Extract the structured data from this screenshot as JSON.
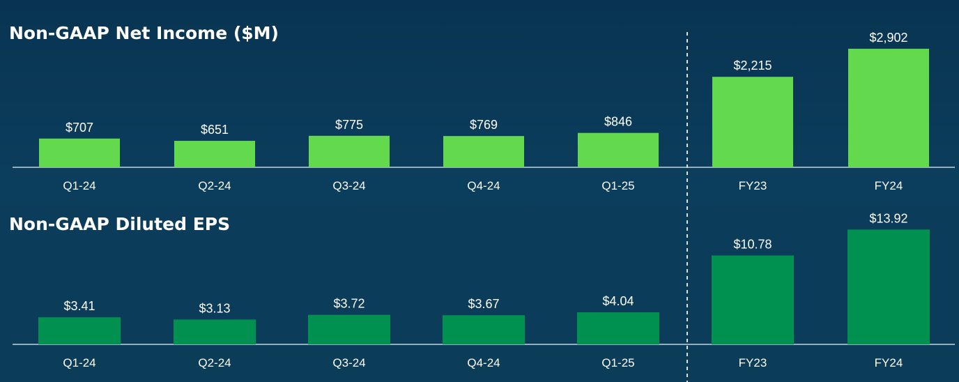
{
  "colors": {
    "background": "#0a3a57",
    "net_income_bar": "#63d94e",
    "eps_bar": "#009150",
    "axis": "#c8d3da",
    "divider": "#d9e2e8",
    "text": "#ffffff"
  },
  "chart_data": [
    {
      "type": "bar",
      "title": "Non-GAAP Net Income ($M)",
      "xlabel": "",
      "ylabel": "",
      "categories": [
        "Q1-24",
        "Q2-24",
        "Q3-24",
        "Q4-24",
        "Q1-25",
        "FY23",
        "FY24"
      ],
      "values": [
        707,
        651,
        775,
        769,
        846,
        2215,
        2902
      ],
      "value_labels": [
        "$707",
        "$651",
        "$775",
        "$769",
        "$846",
        "$2,215",
        "$2,902"
      ],
      "scale_groups": [
        [
          0,
          1,
          2,
          3,
          4
        ],
        [
          5,
          6
        ]
      ],
      "divider_after_index": 4,
      "grid": false
    },
    {
      "type": "bar",
      "title": "Non-GAAP Diluted EPS",
      "xlabel": "",
      "ylabel": "",
      "categories": [
        "Q1-24",
        "Q2-24",
        "Q3-24",
        "Q4-24",
        "Q1-25",
        "FY23",
        "FY24"
      ],
      "values": [
        3.41,
        3.13,
        3.72,
        3.67,
        4.04,
        10.78,
        13.92
      ],
      "value_labels": [
        "$3.41",
        "$3.13",
        "$3.72",
        "$3.67",
        "$4.04",
        "$10.78",
        "$13.92"
      ],
      "scale_groups": [
        [
          0,
          1,
          2,
          3,
          4
        ],
        [
          5,
          6
        ]
      ],
      "divider_after_index": 4,
      "grid": false
    }
  ]
}
